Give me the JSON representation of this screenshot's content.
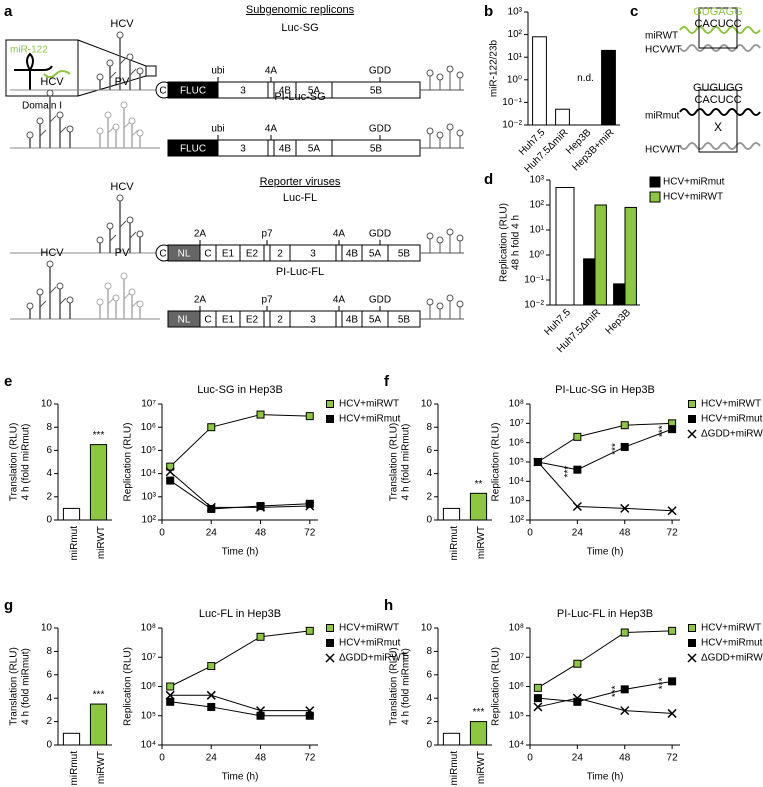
{
  "panel_labels": [
    "a",
    "b",
    "c",
    "d",
    "e",
    "f",
    "g",
    "h"
  ],
  "diagram_a": {
    "inset": {
      "mir": "miR-122",
      "domain": "Domain I"
    },
    "sections": [
      "Subgenomic replicons",
      "Reporter viruses"
    ],
    "constructs": [
      {
        "name": "Luc-SG",
        "ires": [
          "HCV"
        ],
        "segments": [
          "C",
          "FLUC",
          "3",
          "4B",
          "5A",
          "5B"
        ],
        "sites": [
          "ubi",
          "4A",
          "GDD"
        ]
      },
      {
        "name": "PI-Luc-SG",
        "ires": [
          "HCV",
          "PV"
        ],
        "segments": [
          "FLUC",
          "3",
          "4B",
          "5A",
          "5B"
        ],
        "sites": [
          "ubi",
          "4A",
          "GDD"
        ]
      },
      {
        "name": "Luc-FL",
        "ires": [
          "HCV"
        ],
        "segments": [
          "C",
          "NL",
          "C",
          "E1",
          "E2",
          "2",
          "3",
          "4B",
          "5A",
          "5B"
        ],
        "sites": [
          "2A",
          "p7",
          "4A",
          "GDD"
        ]
      },
      {
        "name": "PI-Luc-FL",
        "ires": [
          "HCV",
          "PV"
        ],
        "segments": [
          "NL",
          "C",
          "E1",
          "E2",
          "2",
          "3",
          "4B",
          "5A",
          "5B"
        ],
        "sites": [
          "2A",
          "p7",
          "4A",
          "GDD"
        ]
      }
    ]
  },
  "diagram_c": {
    "top": {
      "mir_seq": "GUGAGG",
      "hcv_seq": "CACUCC",
      "mir": "miRWT",
      "hcv": "HCVWT"
    },
    "bottom": {
      "mir_seq": "GUGUGG",
      "hcv_seq": "CACUCC",
      "mir": "miRmut",
      "hcv": "HCVWT"
    }
  },
  "chart_data": [
    {
      "type": "bar",
      "ylabel": [
        "miR-122/23b"
      ],
      "categories": [
        "Huh7.5",
        "Huh7.5ΔmiR",
        "Hep3B",
        "Hep3B+miR"
      ],
      "values": [
        80,
        0.05,
        null,
        20
      ],
      "colors": [
        "#ffffff",
        "#ffffff",
        "#000000",
        "#000000"
      ],
      "annotations": [
        null,
        null,
        "n.d.",
        null
      ],
      "log_y": true,
      "ylim": [
        0.01,
        1000
      ],
      "yticks": [
        {
          "value": 0.01,
          "label": "10⁻²"
        },
        {
          "value": 0.1,
          "label": "10⁻¹"
        },
        {
          "value": 1,
          "label": "10⁰"
        },
        {
          "value": 10,
          "label": "10¹"
        },
        {
          "value": 100,
          "label": "10²"
        },
        {
          "value": 1000,
          "label": "10³"
        }
      ]
    },
    {
      "type": "bar",
      "ylabel": [
        "Replication (RLU)",
        "48 h fold 4 h"
      ],
      "categories": [
        "Huh7.5",
        "Huh7.5ΔmiR",
        "Hep3B"
      ],
      "series": [
        {
          "color": "#ffffff",
          "values": [
            500,
            null,
            null
          ]
        },
        {
          "name": "HCV+miRmut",
          "color": "#000000",
          "values": [
            null,
            0.7,
            0.07
          ]
        },
        {
          "name": "HCV+miRWT",
          "color": "#8dc63f",
          "values": [
            null,
            100,
            80
          ]
        }
      ],
      "legend": "right",
      "log_y": true,
      "ylim": [
        0.01,
        1000
      ],
      "yticks": [
        {
          "value": 0.01,
          "label": "10⁻²"
        },
        {
          "value": 0.1,
          "label": "10⁻¹"
        },
        {
          "value": 1,
          "label": "10⁰"
        },
        {
          "value": 10,
          "label": "10¹"
        },
        {
          "value": 100,
          "label": "10²"
        },
        {
          "value": 1000,
          "label": "10³"
        }
      ]
    },
    {
      "type": "bar",
      "ylabel": [
        "Translation (RLU)",
        "4 h (fold miRmut)"
      ],
      "categories": [
        "miRmut",
        "miRWT"
      ],
      "values": [
        1,
        6.5
      ],
      "colors": [
        "#ffffff",
        "#8dc63f"
      ],
      "annotations": [
        null,
        "***"
      ],
      "ylim": [
        0,
        10
      ],
      "yticks": [
        0,
        2,
        4,
        6,
        8,
        10
      ]
    },
    {
      "type": "line",
      "title": "Luc-SG in Hep3B",
      "xlabel": "Time (h)",
      "ylabel": [
        "Replication (RLU)"
      ],
      "legend": "right",
      "x": [
        4,
        24,
        48,
        72
      ],
      "xlim": [
        0,
        76
      ],
      "xticks": [
        0,
        24,
        48,
        72
      ],
      "log_y": true,
      "ylim": [
        100,
        10000000
      ],
      "yticks": [
        {
          "value": 100,
          "label": "10²"
        },
        {
          "value": 1000,
          "label": "10³"
        },
        {
          "value": 10000,
          "label": "10⁴"
        },
        {
          "value": 100000,
          "label": "10⁵"
        },
        {
          "value": 1000000,
          "label": "10⁶"
        },
        {
          "value": 10000000,
          "label": "10⁷"
        }
      ],
      "series": [
        {
          "name": "HCV+miRWT",
          "color": "#8dc63f",
          "marker": "square",
          "values": [
            20000,
            1000000,
            3500000,
            3000000
          ]
        },
        {
          "name": "HCV+miRmut",
          "color": "#000000",
          "marker": "square",
          "values": [
            5000,
            300,
            400,
            500
          ]
        },
        {
          "color": "#000000",
          "marker": "x",
          "values": [
            12000,
            350,
            350,
            400
          ]
        }
      ]
    },
    {
      "type": "bar",
      "ylabel": [
        "Translation (RLU)",
        "4 h (fold miRmut)"
      ],
      "categories": [
        "miRmut",
        "miRWT"
      ],
      "values": [
        1,
        2.3
      ],
      "colors": [
        "#ffffff",
        "#8dc63f"
      ],
      "annotations": [
        null,
        "**"
      ],
      "ylim": [
        0,
        10
      ],
      "yticks": [
        0,
        2,
        4,
        6,
        8,
        10
      ]
    },
    {
      "type": "line",
      "title": "PI-Luc-SG in Hep3B",
      "xlabel": "Time (h)",
      "ylabel": [
        "Replication (RLU)"
      ],
      "legend": "right",
      "x": [
        4,
        24,
        48,
        72
      ],
      "xlim": [
        0,
        76
      ],
      "xticks": [
        0,
        24,
        48,
        72
      ],
      "log_y": true,
      "ylim": [
        100,
        100000000
      ],
      "yticks": [
        {
          "value": 100,
          "label": "10²"
        },
        {
          "value": 1000,
          "label": "10³"
        },
        {
          "value": 10000,
          "label": "10⁴"
        },
        {
          "value": 100000,
          "label": "10⁵"
        },
        {
          "value": 1000000,
          "label": "10⁶"
        },
        {
          "value": 10000000,
          "label": "10⁷"
        },
        {
          "value": 100000000,
          "label": "10⁸"
        }
      ],
      "series": [
        {
          "name": "HCV+miRWT",
          "color": "#8dc63f",
          "marker": "square",
          "values": [
            100000,
            2000000,
            8000000,
            10000000
          ]
        },
        {
          "name": "HCV+miRmut",
          "color": "#000000",
          "marker": "square",
          "values": [
            100000,
            40000,
            600000,
            5000000
          ],
          "annotations": [
            null,
            "***",
            "***",
            "***"
          ]
        },
        {
          "name": "ΔGDD+miRWT",
          "color": "#000000",
          "marker": "x",
          "values": [
            100000,
            500,
            400,
            300
          ]
        }
      ]
    },
    {
      "type": "bar",
      "ylabel": [
        "Translation (RLU)",
        "4 h (fold miRmut)"
      ],
      "categories": [
        "miRmut",
        "miRWT"
      ],
      "values": [
        1,
        3.5
      ],
      "colors": [
        "#ffffff",
        "#8dc63f"
      ],
      "annotations": [
        null,
        "***"
      ],
      "ylim": [
        0,
        10
      ],
      "yticks": [
        0,
        2,
        4,
        6,
        8,
        10
      ]
    },
    {
      "type": "line",
      "title": "Luc-FL in Hep3B",
      "xlabel": "Time (h)",
      "ylabel": [
        "Replication (RLU)"
      ],
      "legend": "right",
      "x": [
        4,
        24,
        48,
        72
      ],
      "xlim": [
        0,
        76
      ],
      "xticks": [
        0,
        24,
        48,
        72
      ],
      "log_y": true,
      "ylim": [
        10000,
        100000000
      ],
      "yticks": [
        {
          "value": 10000,
          "label": "10⁴"
        },
        {
          "value": 100000,
          "label": "10⁵"
        },
        {
          "value": 1000000,
          "label": "10⁶"
        },
        {
          "value": 10000000,
          "label": "10⁷"
        },
        {
          "value": 100000000,
          "label": "10⁸"
        }
      ],
      "series": [
        {
          "name": "HCV+miRWT",
          "color": "#8dc63f",
          "marker": "square",
          "values": [
            1000000,
            5000000,
            50000000,
            80000000
          ]
        },
        {
          "name": "HCV+miRmut",
          "color": "#000000",
          "marker": "square",
          "values": [
            300000,
            200000,
            100000,
            100000
          ]
        },
        {
          "name": "ΔGDD+miRWT",
          "color": "#000000",
          "marker": "x",
          "values": [
            500000,
            500000,
            150000,
            150000
          ]
        }
      ]
    },
    {
      "type": "bar",
      "ylabel": [
        "Translation (RLU)",
        "4 h (fold miRmut)"
      ],
      "categories": [
        "miRmut",
        "miRWT"
      ],
      "values": [
        1,
        2
      ],
      "colors": [
        "#ffffff",
        "#8dc63f"
      ],
      "annotations": [
        null,
        "***"
      ],
      "ylim": [
        0,
        10
      ],
      "yticks": [
        0,
        2,
        4,
        6,
        8,
        10
      ]
    },
    {
      "type": "line",
      "title": "PI-Luc-FL in Hep3B",
      "xlabel": "Time (h)",
      "ylabel": [
        "Replication (RLU)"
      ],
      "legend": "right",
      "x": [
        4,
        24,
        48,
        72
      ],
      "xlim": [
        0,
        76
      ],
      "xticks": [
        0,
        24,
        48,
        72
      ],
      "log_y": true,
      "ylim": [
        10000,
        100000000
      ],
      "yticks": [
        {
          "value": 10000,
          "label": "10⁴"
        },
        {
          "value": 100000,
          "label": "10⁵"
        },
        {
          "value": 1000000,
          "label": "10⁶"
        },
        {
          "value": 10000000,
          "label": "10⁷"
        },
        {
          "value": 100000000,
          "label": "10⁸"
        }
      ],
      "series": [
        {
          "name": "HCV+miRWT",
          "color": "#8dc63f",
          "marker": "square",
          "values": [
            900000,
            6000000,
            70000000,
            80000000
          ]
        },
        {
          "name": "HCV+miRmut",
          "color": "#000000",
          "marker": "square",
          "values": [
            400000,
            300000,
            800000,
            1500000
          ],
          "annotations": [
            null,
            null,
            "***",
            "***"
          ]
        },
        {
          "name": "ΔGDD+miRWT",
          "color": "#000000",
          "marker": "x",
          "values": [
            200000,
            400000,
            150000,
            120000
          ]
        }
      ]
    }
  ]
}
